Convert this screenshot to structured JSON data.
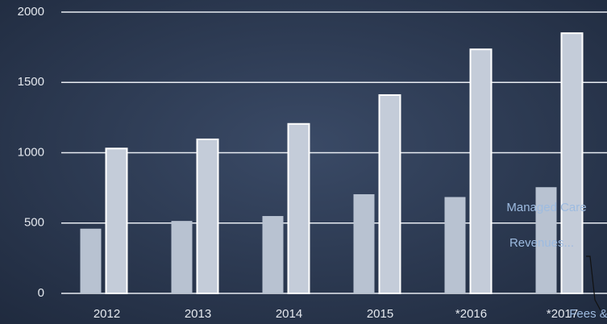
{
  "chart_data": {
    "type": "bar",
    "categories": [
      "2012",
      "2013",
      "2014",
      "2015",
      "*2016",
      "*2017"
    ],
    "series": [
      {
        "color": "#b8c2d1",
        "values": [
          460,
          515,
          550,
          705,
          685,
          755
        ]
      },
      {
        "color": "#c4ccd9",
        "values": [
          1030,
          1095,
          1205,
          1410,
          1735,
          1850
        ]
      }
    ],
    "ylim": [
      0,
      2000
    ],
    "yticks": [
      0,
      500,
      1000,
      1500,
      2000
    ],
    "grid": true,
    "annotations": [
      "Managed Care",
      "Revenues...",
      "Fees &"
    ]
  }
}
